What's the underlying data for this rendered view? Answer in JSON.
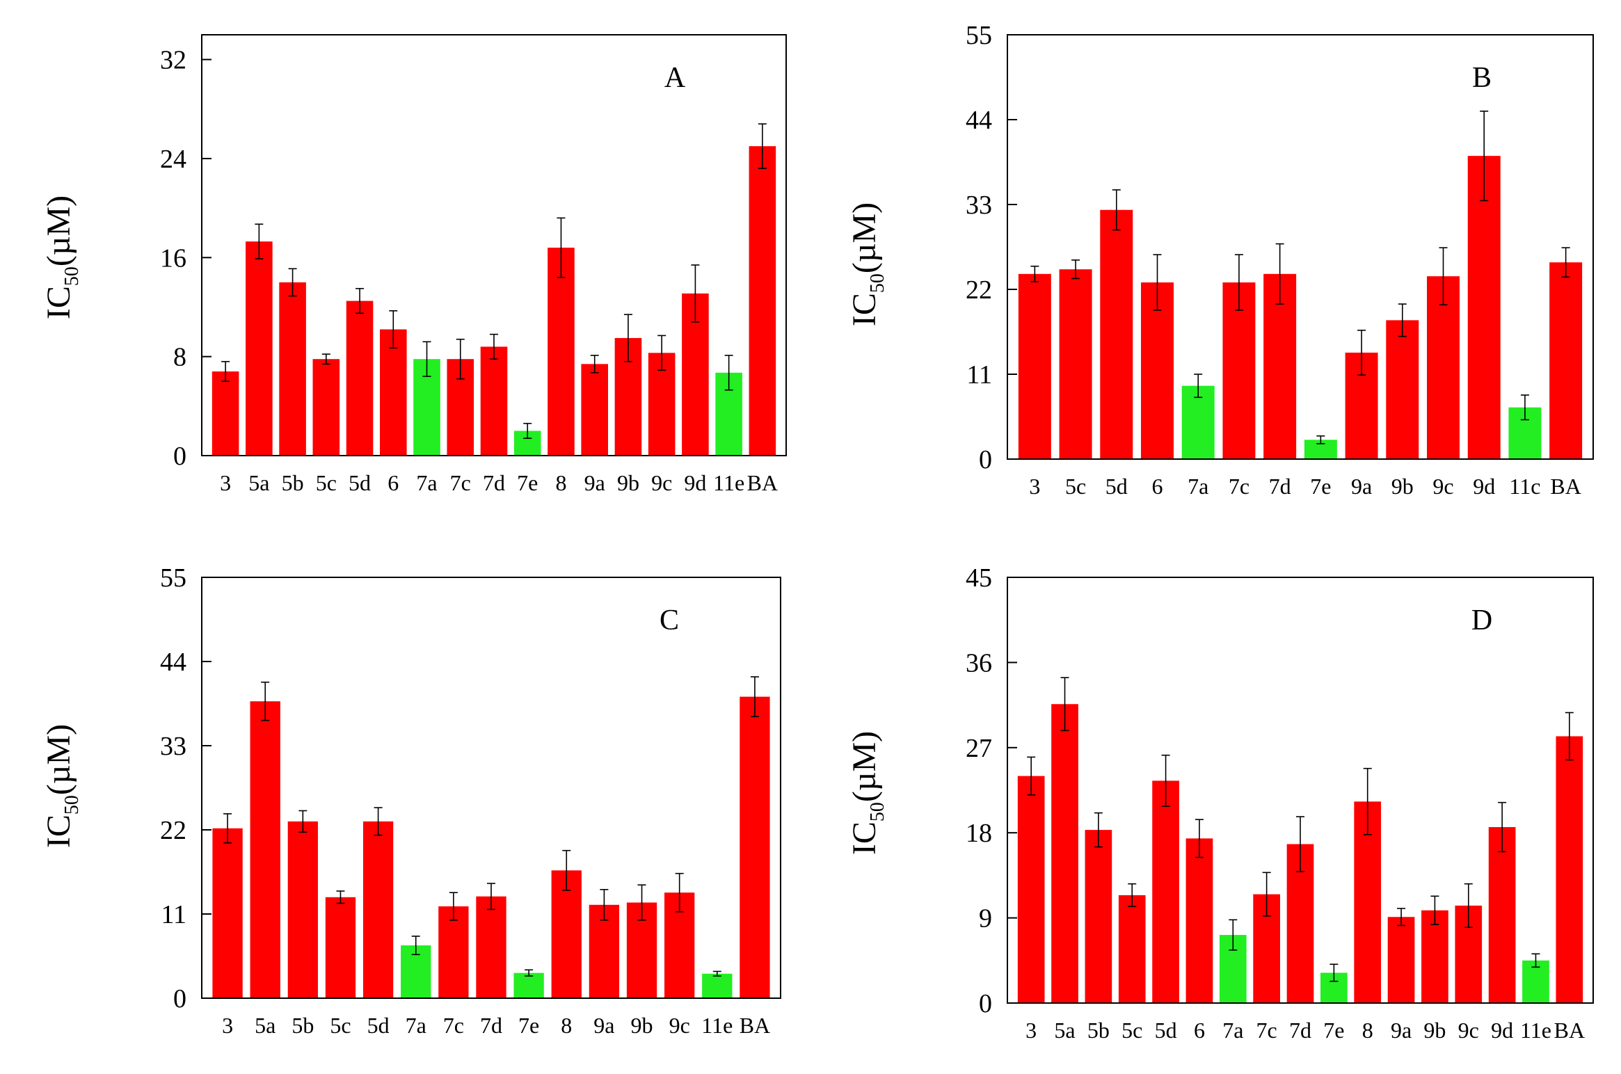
{
  "colors": {
    "normal": "#ff0000",
    "highlight": "#22ee22",
    "frame": "#000000",
    "error": "#000000"
  },
  "chart_data": [
    {
      "type": "bar",
      "label": "A",
      "ylabel_main": "IC",
      "ylabel_sub": "50",
      "ylabel_unit": "(µM)",
      "ylim": [
        0,
        34
      ],
      "yticks": [
        0,
        8,
        16,
        24,
        32
      ],
      "categories": [
        "3",
        "5a",
        "5b",
        "5c",
        "5d",
        "6",
        "7a",
        "7c",
        "7d",
        "7e",
        "8",
        "9a",
        "9b",
        "9c",
        "9d",
        "11e",
        "BA"
      ],
      "category_labels": [
        "3",
        "5a",
        "5b",
        "5c",
        "5d",
        "6",
        "7a",
        "7c",
        "7d",
        "7e",
        "8",
        "9a",
        "9b",
        "9c",
        "9d",
        "11e",
        "BA"
      ],
      "values": [
        6.8,
        17.3,
        14.0,
        7.8,
        12.5,
        10.2,
        7.8,
        7.8,
        8.8,
        2.0,
        16.8,
        7.4,
        9.5,
        8.3,
        13.1,
        6.7,
        25.0
      ],
      "errors": [
        0.8,
        1.4,
        1.1,
        0.4,
        1.0,
        1.5,
        1.4,
        1.6,
        1.0,
        0.6,
        2.4,
        0.7,
        1.9,
        1.4,
        2.3,
        1.4,
        1.8
      ],
      "highlight": [
        false,
        false,
        false,
        false,
        false,
        false,
        true,
        false,
        false,
        true,
        false,
        false,
        false,
        false,
        false,
        true,
        false
      ]
    },
    {
      "type": "bar",
      "label": "B",
      "ylabel_main": "IC",
      "ylabel_sub": "50",
      "ylabel_unit": "(µM)",
      "ylim": [
        0,
        55
      ],
      "yticks": [
        0,
        11,
        22,
        33,
        44,
        55
      ],
      "categories": [
        "3",
        "5c",
        "5d",
        "6",
        "7a",
        "7c",
        "7d",
        "7e",
        "9a",
        "9b",
        "9c",
        "9d",
        "11c",
        "BA"
      ],
      "category_labels": [
        "3",
        "5c",
        "5d",
        "6",
        "7a",
        "7c",
        "7d",
        "7e",
        "9a",
        "9b",
        "9c",
        "9d",
        "11c",
        "BA"
      ],
      "values": [
        24.0,
        24.6,
        32.3,
        22.9,
        9.5,
        22.9,
        24.0,
        2.5,
        13.8,
        18.0,
        23.7,
        39.3,
        6.7,
        25.5
      ],
      "errors": [
        1.0,
        1.2,
        2.6,
        3.6,
        1.5,
        3.6,
        3.9,
        0.5,
        2.9,
        2.1,
        3.7,
        5.8,
        1.6,
        1.9
      ],
      "highlight": [
        false,
        false,
        false,
        false,
        true,
        false,
        false,
        true,
        false,
        false,
        false,
        false,
        true,
        false
      ]
    },
    {
      "type": "bar",
      "label": "C",
      "ylabel_main": "IC",
      "ylabel_sub": "50",
      "ylabel_unit": "(µM)",
      "ylim": [
        0,
        55
      ],
      "yticks": [
        0,
        11,
        22,
        33,
        44,
        55
      ],
      "categories": [
        "3",
        "5a",
        "5b",
        "5c",
        "5d",
        "7a",
        "7c",
        "7d",
        "7e",
        "8",
        "9a",
        "9b",
        "9c",
        "11e",
        "BA"
      ],
      "category_labels": [
        "3",
        "5a",
        "5b",
        "5c",
        "5d",
        "7a",
        "7c",
        "7d",
        "7e",
        "8",
        "9a",
        "9b",
        "9c",
        "11e",
        "BA"
      ],
      "values": [
        22.2,
        38.8,
        23.1,
        13.2,
        23.1,
        6.9,
        12.0,
        13.3,
        3.3,
        16.7,
        12.2,
        12.5,
        13.8,
        3.2,
        39.4
      ],
      "errors": [
        1.9,
        2.5,
        1.4,
        0.8,
        1.8,
        1.2,
        1.8,
        1.7,
        0.4,
        2.6,
        2.0,
        2.3,
        2.5,
        0.3,
        2.6
      ],
      "highlight": [
        false,
        false,
        false,
        false,
        false,
        true,
        false,
        false,
        true,
        false,
        false,
        false,
        false,
        true,
        false
      ]
    },
    {
      "type": "bar",
      "label": "D",
      "ylabel_main": "IC",
      "ylabel_sub": "50",
      "ylabel_unit": "(µM)",
      "ylim": [
        0,
        45
      ],
      "yticks": [
        0,
        9,
        18,
        27,
        36,
        45
      ],
      "categories": [
        "3",
        "5a",
        "5b",
        "5c",
        "5d",
        "6",
        "7a",
        "7c",
        "7d",
        "7e",
        "8",
        "9a",
        "9b",
        "9c",
        "9d",
        "11e",
        "BA"
      ],
      "category_labels": [
        "3",
        "5a",
        "5b",
        "5c",
        "5d",
        "6",
        "7a",
        "7c",
        "7d",
        "7e",
        "8",
        "9a",
        "9b",
        "9c",
        "9d",
        "11e",
        "BA"
      ],
      "values": [
        24.0,
        31.6,
        18.3,
        11.4,
        23.5,
        17.4,
        7.2,
        11.5,
        16.8,
        3.2,
        21.3,
        9.1,
        9.8,
        10.3,
        18.6,
        4.5,
        28.2
      ],
      "errors": [
        2.0,
        2.8,
        1.8,
        1.2,
        2.7,
        2.0,
        1.6,
        2.3,
        2.9,
        0.9,
        3.5,
        0.9,
        1.5,
        2.3,
        2.6,
        0.7,
        2.5
      ],
      "highlight": [
        false,
        false,
        false,
        false,
        false,
        false,
        true,
        false,
        false,
        true,
        false,
        false,
        false,
        false,
        false,
        true,
        false
      ]
    }
  ]
}
